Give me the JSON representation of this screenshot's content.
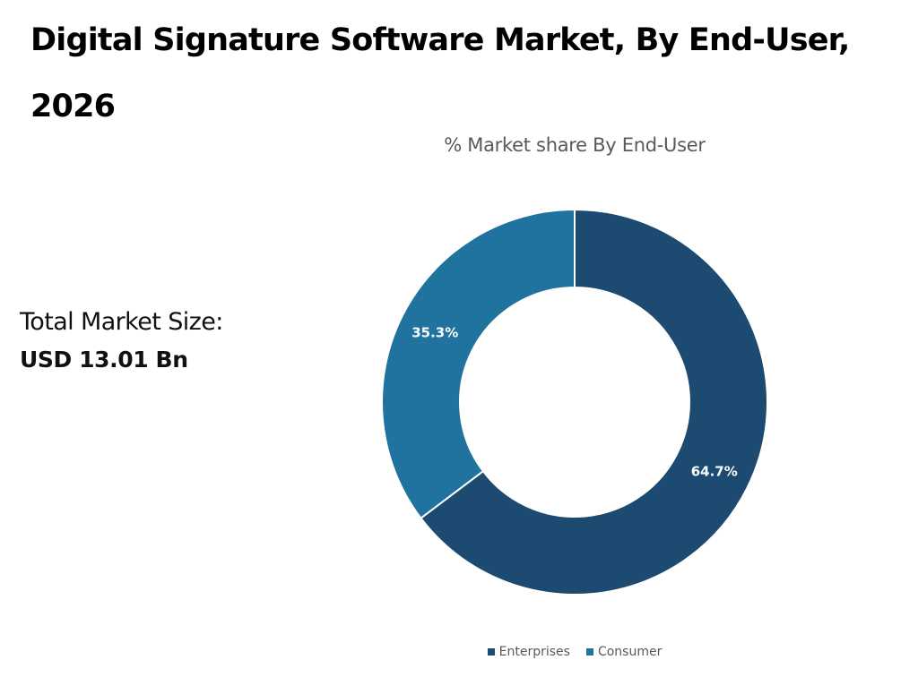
{
  "title": "Digital Signature Software Market, By End-User, 2026",
  "market_size": {
    "label": "Total Market Size:",
    "value": "USD 13.01 Bn"
  },
  "chart_data": {
    "type": "pie",
    "variant": "donut",
    "title": "% Market share By End-User",
    "categories": [
      "Enterprises",
      "Consumer"
    ],
    "values": [
      64.7,
      35.3
    ],
    "data_labels": [
      "64.7%",
      "35.3%"
    ],
    "colors": [
      "#1d4a70",
      "#1f739e"
    ],
    "start_angle": "12 o'clock",
    "direction": "clockwise",
    "legend_position": "bottom"
  }
}
